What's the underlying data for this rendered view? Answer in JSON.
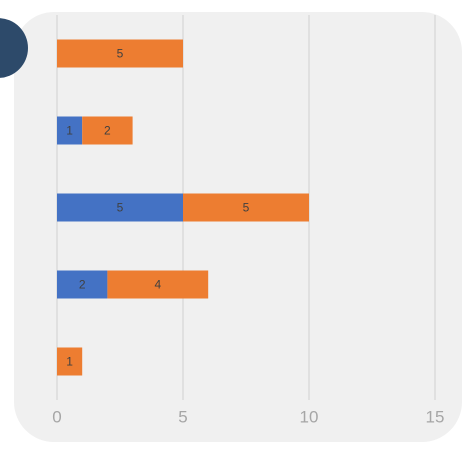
{
  "chart_data": {
    "type": "stacked_barh",
    "categories": [
      null,
      null,
      null,
      null,
      null
    ],
    "series": [
      {
        "color": "#4472c4",
        "values": [
          0,
          1,
          5,
          2,
          0
        ]
      },
      {
        "color": "#ed7d31",
        "values": [
          5,
          2,
          5,
          4,
          1
        ]
      }
    ],
    "xlim": [
      0,
      15
    ],
    "xticks": [
      0,
      5,
      10,
      15
    ],
    "grid": true
  }
}
